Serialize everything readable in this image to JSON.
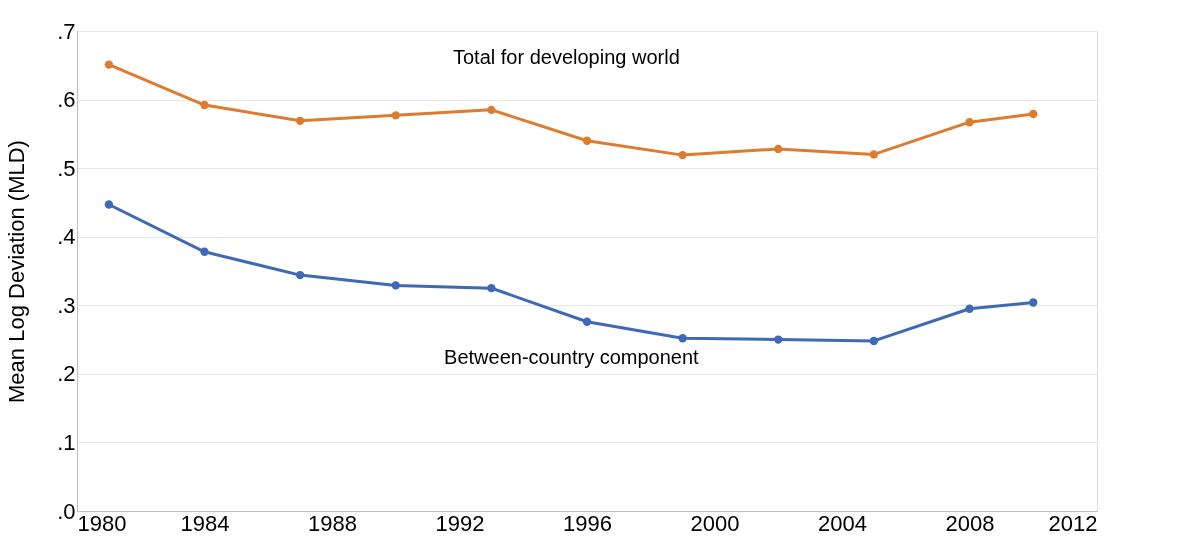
{
  "chart_data": {
    "type": "line",
    "ylabel": "Mean Log Deviation (MLD)",
    "x": [
      1981,
      1984,
      1987,
      1990,
      1993,
      1996,
      1999,
      2002,
      2005,
      2008,
      2010
    ],
    "series": [
      {
        "name": "Total for developing world",
        "color": "#dd7c31",
        "values": [
          0.651,
          0.592,
          0.569,
          0.577,
          0.585,
          0.54,
          0.519,
          0.528,
          0.52,
          0.567,
          0.579
        ]
      },
      {
        "name": "Between-country component",
        "color": "#3d69b5",
        "values": [
          0.447,
          0.378,
          0.344,
          0.329,
          0.325,
          0.276,
          0.252,
          0.25,
          0.248,
          0.295,
          0.304
        ]
      }
    ],
    "xlim": [
      1980,
      2012
    ],
    "xticks": [
      1980,
      1984,
      1988,
      1992,
      1996,
      2000,
      2004,
      2008,
      2012
    ],
    "ylim": [
      0,
      0.7
    ],
    "yticks": [
      {
        "value": 0,
        "label": ".0"
      },
      {
        "value": 0.1,
        "label": ".1"
      },
      {
        "value": 0.2,
        "label": ".2"
      },
      {
        "value": 0.3,
        "label": ".3"
      },
      {
        "value": 0.4,
        "label": ".4"
      },
      {
        "value": 0.5,
        "label": ".5"
      },
      {
        "value": 0.6,
        "label": ".6"
      },
      {
        "value": 0.7,
        "label": ".7"
      }
    ],
    "grid": "y",
    "marker": "circle",
    "line_style": "solid",
    "legend": false
  }
}
